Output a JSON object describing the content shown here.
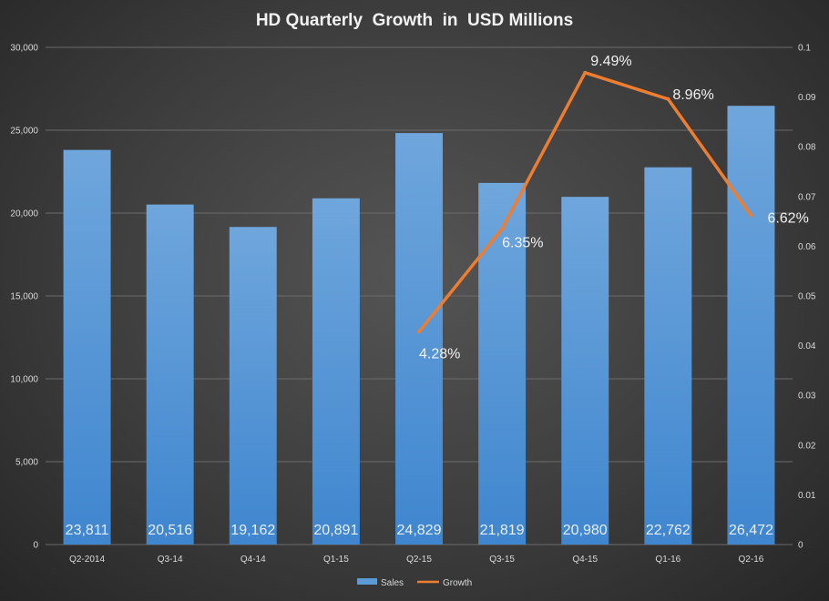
{
  "chart_data": {
    "type": "bar",
    "title": "HD Quarterly  Growth  in  USD Millions",
    "categories": [
      "Q2-2014",
      "Q3-14",
      "Q4-14",
      "Q1-15",
      "Q2-15",
      "Q3-15",
      "Q4-15",
      "Q1-16",
      "Q2-16"
    ],
    "series": [
      {
        "name": "Sales",
        "type": "bar",
        "axis": "left",
        "values": [
          23811,
          20516,
          19162,
          20891,
          24829,
          21819,
          20980,
          22762,
          26472
        ],
        "labels": [
          "23,811",
          "20,516",
          "19,162",
          "20,891",
          "24,829",
          "21,819",
          "20,980",
          "22,762",
          "26,472"
        ]
      },
      {
        "name": "Growth",
        "type": "line",
        "axis": "right",
        "values": [
          null,
          null,
          null,
          null,
          0.0428,
          0.0635,
          0.0949,
          0.0896,
          0.0662
        ],
        "labels": [
          "",
          "",
          "",
          "",
          "4.28%",
          "6.35%",
          "9.49%",
          "8.96%",
          "6.62%"
        ]
      }
    ],
    "y_left": {
      "ylim": [
        0,
        30000
      ],
      "ticks": [
        0,
        5000,
        10000,
        15000,
        20000,
        25000,
        30000
      ],
      "tick_labels": [
        "0",
        "5,000",
        "10,000",
        "15,000",
        "20,000",
        "25,000",
        "30,000"
      ]
    },
    "y_right": {
      "ylim": [
        0,
        0.1
      ],
      "ticks": [
        0,
        0.01,
        0.02,
        0.03,
        0.04,
        0.05,
        0.06,
        0.07,
        0.08,
        0.09,
        0.1
      ],
      "tick_labels": [
        "0",
        "0.01",
        "0.02",
        "0.03",
        "0.04",
        "0.05",
        "0.06",
        "0.07",
        "0.08",
        "0.09",
        "0.1"
      ]
    },
    "grid": true,
    "legend": "bottom",
    "colors": {
      "bar_top": "#6fa6dc",
      "bar_bottom": "#3f86cf",
      "line": "#ed7d31",
      "grid": "#6b6b6b"
    }
  }
}
